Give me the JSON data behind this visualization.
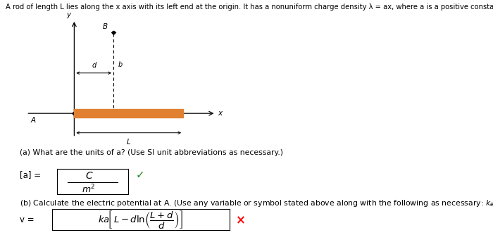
{
  "bg_color": "#ffffff",
  "text_color": "#000000",
  "rod_color": "#e08030",
  "title": "A rod of length L lies along the x axis with its left end at the origin. It has a nonuniform charge density λ = ax, where a is a positive constant.",
  "part_a_q": "(a) What are the units of a? (Use SI unit abbreviations as necessary.)",
  "part_b_q": "(b) Calculate the electric potential at A. (Use any variable or symbol stated above along with the following as necessary: kₑ.)"
}
